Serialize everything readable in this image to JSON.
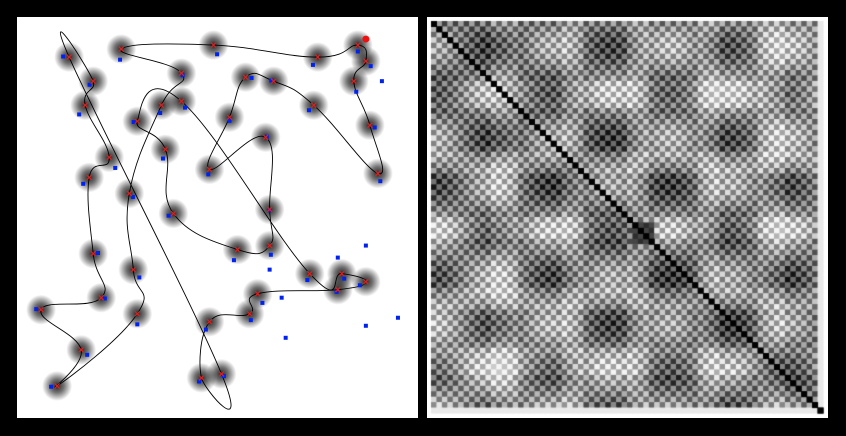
{
  "colors": {
    "background": "#000000",
    "panel": "#ffffff",
    "path": "#000000",
    "sample_point": "#0022ee",
    "cluster_center": "#dd2222",
    "highlight": "#ee1111"
  },
  "tsp_view": {
    "clusters": [
      [
        0.13,
        0.1
      ],
      [
        0.26,
        0.08
      ],
      [
        0.49,
        0.07
      ],
      [
        0.75,
        0.1
      ],
      [
        0.85,
        0.07
      ],
      [
        0.87,
        0.11
      ],
      [
        0.19,
        0.16
      ],
      [
        0.41,
        0.14
      ],
      [
        0.57,
        0.15
      ],
      [
        0.64,
        0.16
      ],
      [
        0.84,
        0.16
      ],
      [
        0.17,
        0.22
      ],
      [
        0.36,
        0.22
      ],
      [
        0.41,
        0.21
      ],
      [
        0.74,
        0.22
      ],
      [
        0.53,
        0.25
      ],
      [
        0.88,
        0.27
      ],
      [
        0.3,
        0.26
      ],
      [
        0.62,
        0.3
      ],
      [
        0.23,
        0.35
      ],
      [
        0.37,
        0.33
      ],
      [
        0.9,
        0.39
      ],
      [
        0.18,
        0.4
      ],
      [
        0.48,
        0.38
      ],
      [
        0.28,
        0.44
      ],
      [
        0.39,
        0.49
      ],
      [
        0.63,
        0.48
      ],
      [
        0.19,
        0.59
      ],
      [
        0.55,
        0.58
      ],
      [
        0.63,
        0.57
      ],
      [
        0.29,
        0.63
      ],
      [
        0.73,
        0.64
      ],
      [
        0.81,
        0.64
      ],
      [
        0.87,
        0.66
      ],
      [
        0.8,
        0.68
      ],
      [
        0.21,
        0.7
      ],
      [
        0.06,
        0.73
      ],
      [
        0.3,
        0.74
      ],
      [
        0.6,
        0.69
      ],
      [
        0.48,
        0.76
      ],
      [
        0.58,
        0.74
      ],
      [
        0.16,
        0.83
      ],
      [
        0.46,
        0.9
      ],
      [
        0.51,
        0.89
      ],
      [
        0.1,
        0.92
      ]
    ],
    "extra_points": [
      [
        0.67,
        0.8
      ],
      [
        0.87,
        0.77
      ],
      [
        0.95,
        0.75
      ],
      [
        0.91,
        0.16
      ],
      [
        0.87,
        0.57
      ],
      [
        0.8,
        0.6
      ],
      [
        0.63,
        0.63
      ],
      [
        0.66,
        0.7
      ]
    ],
    "highlight_point": [
      0.87,
      0.07
    ],
    "tour": [
      0,
      6,
      11,
      19,
      22,
      27,
      35,
      36,
      41,
      44,
      37,
      30,
      24,
      12,
      7,
      1,
      2,
      3,
      4,
      5,
      10,
      16,
      21,
      14,
      9,
      8,
      15,
      23,
      18,
      26,
      29,
      28,
      25,
      20,
      17,
      13,
      31,
      32,
      33,
      34,
      38,
      40,
      39,
      42,
      43
    ]
  },
  "matrix_view": {
    "size": 72,
    "cluster_block": [
      0.5,
      0.56
    ],
    "bands": [
      0.18,
      0.35,
      0.52,
      0.7,
      0.86
    ]
  }
}
